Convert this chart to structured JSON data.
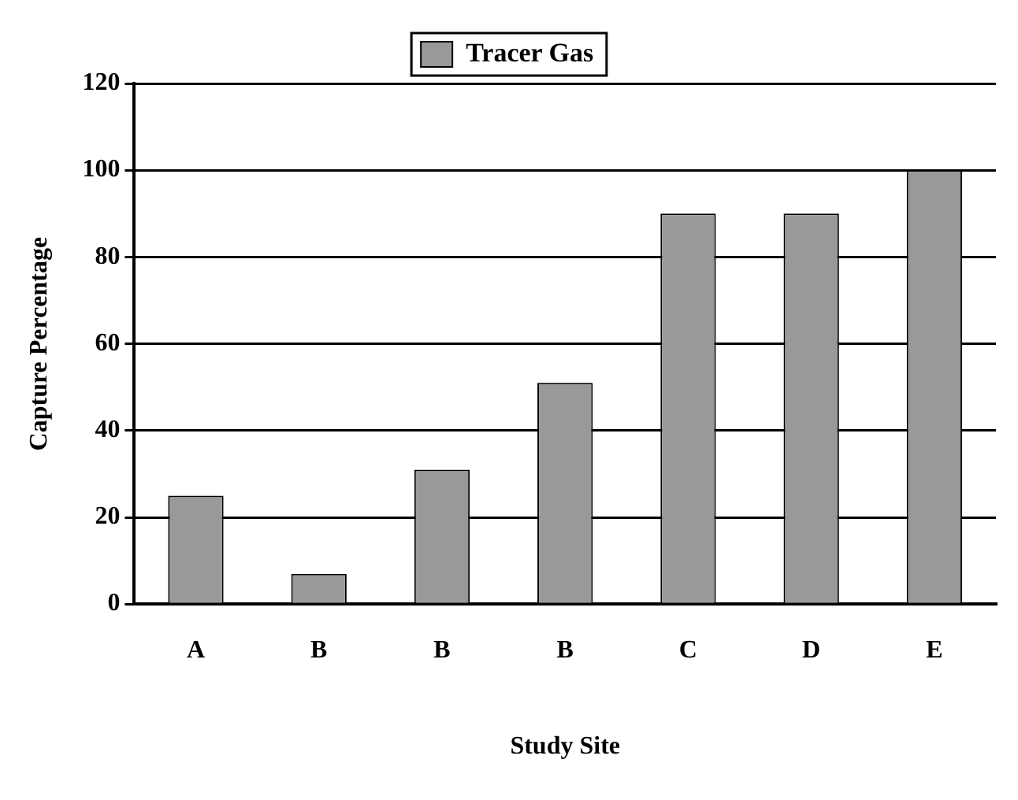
{
  "chart_data": {
    "type": "bar",
    "categories": [
      "A",
      "B",
      "B",
      "B",
      "C",
      "D",
      "E"
    ],
    "series": [
      {
        "name": "Tracer Gas",
        "color": "#999999",
        "values": [
          25,
          7,
          31,
          51,
          90,
          90,
          100
        ]
      }
    ],
    "xlabel": "Study Site",
    "ylabel": "Capture Percentage",
    "ylim": [
      0,
      120
    ],
    "yticks": [
      0,
      20,
      40,
      60,
      80,
      100,
      120
    ],
    "grid": "y",
    "legend": "top"
  }
}
